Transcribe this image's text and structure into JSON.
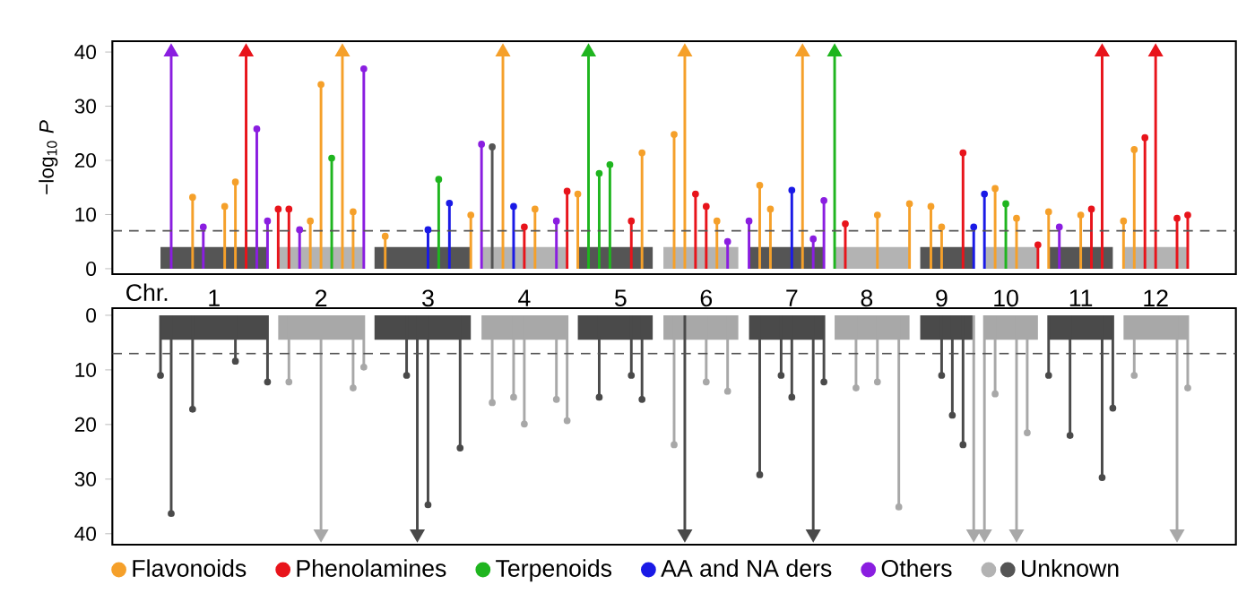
{
  "chart_data": [
    {
      "type": "lollipop",
      "xlabel": "Chr.",
      "ylabel": "−log$_{10}$ *P*",
      "ylim": [
        -1,
        42
      ],
      "yticks": [
        0,
        10,
        20,
        30,
        40
      ],
      "legend": "bottom",
      "grid": false,
      "categories": [
        null,
        null,
        null,
        null,
        null,
        null,
        null,
        null,
        null,
        "1",
        null,
        null,
        null,
        null,
        null,
        null,
        null,
        null,
        null,
        "2",
        null,
        null,
        null,
        null,
        null,
        null,
        null,
        null,
        null,
        "3",
        null,
        null,
        null,
        null,
        null,
        null,
        null,
        null,
        "4",
        null,
        null,
        null,
        null,
        null,
        null,
        null,
        null,
        "5",
        null,
        null,
        null,
        null,
        null,
        null,
        null,
        "6",
        null,
        null,
        null,
        null,
        null,
        null,
        null,
        "7",
        null,
        null,
        null,
        null,
        null,
        null,
        "8",
        null,
        null,
        null,
        null,
        null,
        null,
        "9",
        null,
        null,
        null,
        null,
        null,
        "10",
        null,
        null,
        null,
        null,
        null,
        null,
        "11",
        null,
        null,
        null,
        null,
        null,
        null,
        "12",
        null,
        null,
        null,
        null,
        null,
        null,
        null
      ],
      "ref_lines": [
        {
          "axis": "y",
          "value": 7,
          "color": "#555555",
          "line_style": "dashed"
        }
      ],
      "series": [
        {
          "type": "area",
          "color": "#555555",
          "values": [
            null,
            null,
            null,
            null,
            4,
            4,
            4,
            4,
            4,
            4,
            4,
            4,
            4,
            4,
            4,
            null,
            null,
            null,
            null,
            null,
            null,
            null,
            null,
            null,
            4,
            4,
            4,
            4,
            4,
            4,
            4,
            4,
            4,
            4,
            null,
            null,
            null,
            null,
            null,
            null,
            null,
            null,
            null,
            4,
            4,
            4,
            4,
            4,
            4,
            4,
            4,
            null,
            null,
            null,
            null,
            null,
            null,
            null,
            null,
            4,
            4,
            4,
            4,
            4,
            4,
            4,
            4,
            null,
            null,
            null,
            null,
            null,
            null,
            null,
            null,
            4,
            4,
            4,
            4,
            4,
            4,
            null,
            null,
            null,
            null,
            null,
            null,
            4,
            4,
            4,
            4,
            4,
            4,
            4,
            null,
            null,
            null,
            null,
            null,
            null,
            null,
            null,
            null,
            null,
            null
          ]
        },
        {
          "type": "area",
          "color": "#b3b3b3",
          "values": [
            null,
            null,
            null,
            null,
            null,
            null,
            null,
            null,
            null,
            null,
            null,
            null,
            null,
            null,
            null,
            4,
            4,
            4,
            4,
            4,
            4,
            4,
            4,
            4,
            null,
            null,
            null,
            null,
            null,
            null,
            null,
            null,
            null,
            null,
            4,
            4,
            4,
            4,
            4,
            4,
            4,
            4,
            4,
            null,
            null,
            null,
            null,
            null,
            null,
            null,
            null,
            4,
            4,
            4,
            4,
            4,
            4,
            4,
            4,
            null,
            null,
            null,
            null,
            null,
            null,
            null,
            null,
            4,
            4,
            4,
            4,
            4,
            4,
            4,
            4,
            null,
            null,
            null,
            null,
            null,
            null,
            4,
            4,
            4,
            4,
            4,
            4,
            null,
            null,
            null,
            null,
            null,
            null,
            null,
            4,
            4,
            4,
            4,
            4,
            4,
            4,
            null,
            null,
            null,
            null
          ]
        },
        {
          "name": "Flavonoids",
          "color": "#f5a02a",
          "marker": "circle",
          "values": [
            null,
            null,
            null,
            null,
            null,
            null,
            null,
            13.2,
            null,
            null,
            11.5,
            16,
            null,
            null,
            null,
            null,
            null,
            null,
            8.8,
            34,
            null,
            null,
            10.5,
            null,
            null,
            6,
            null,
            null,
            null,
            null,
            null,
            null,
            null,
            9.9,
            null,
            null,
            null,
            null,
            null,
            11,
            null,
            null,
            null,
            13.8,
            null,
            null,
            null,
            null,
            null,
            21.4,
            null,
            null,
            24.8,
            null,
            null,
            null,
            8.8,
            null,
            null,
            null,
            15.4,
            11,
            null,
            null,
            null,
            null,
            null,
            null,
            null,
            null,
            null,
            9.9,
            null,
            null,
            12,
            null,
            11.5,
            7.7,
            null,
            null,
            null,
            null,
            14.8,
            null,
            9.3,
            null,
            null,
            10.5,
            null,
            null,
            9.9,
            null,
            null,
            null,
            8.8,
            22,
            null,
            null,
            null,
            null,
            null,
            null,
            null,
            null,
            null
          ]
        },
        {
          "name": "Phenolamines",
          "color": "#e8141b",
          "marker": "circle",
          "values": [
            null,
            null,
            null,
            null,
            null,
            null,
            null,
            null,
            null,
            null,
            null,
            null,
            null,
            null,
            null,
            11,
            11,
            null,
            null,
            null,
            null,
            null,
            null,
            null,
            null,
            null,
            null,
            null,
            null,
            null,
            null,
            null,
            null,
            null,
            null,
            null,
            null,
            null,
            7.7,
            null,
            null,
            null,
            14.3,
            null,
            null,
            null,
            null,
            null,
            8.8,
            null,
            null,
            null,
            null,
            null,
            13.8,
            11.5,
            null,
            null,
            null,
            null,
            null,
            null,
            null,
            null,
            null,
            null,
            null,
            null,
            8.3,
            null,
            null,
            null,
            null,
            null,
            null,
            null,
            null,
            null,
            null,
            21.4,
            null,
            null,
            null,
            null,
            null,
            null,
            4.4,
            null,
            null,
            null,
            null,
            11,
            null,
            null,
            null,
            null,
            24.2,
            null,
            null,
            9.3,
            9.9,
            null,
            null,
            null,
            null
          ]
        },
        {
          "name": "Terpenoids",
          "color": "#1fb51f",
          "marker": "circle",
          "values": [
            null,
            null,
            null,
            null,
            null,
            null,
            null,
            null,
            null,
            null,
            null,
            null,
            null,
            null,
            null,
            null,
            null,
            null,
            null,
            null,
            20.4,
            null,
            null,
            null,
            null,
            null,
            null,
            null,
            null,
            null,
            16.5,
            null,
            null,
            null,
            null,
            null,
            null,
            null,
            null,
            null,
            null,
            null,
            null,
            null,
            null,
            17.6,
            19.2,
            null,
            null,
            null,
            null,
            null,
            null,
            null,
            null,
            null,
            null,
            null,
            null,
            null,
            null,
            null,
            null,
            null,
            null,
            null,
            null,
            null,
            null,
            null,
            null,
            null,
            null,
            null,
            null,
            null,
            null,
            null,
            null,
            null,
            null,
            null,
            null,
            12,
            null,
            null,
            null,
            null,
            null,
            null,
            null,
            null,
            null,
            null,
            null,
            null,
            null,
            null,
            null,
            null,
            null,
            null,
            null,
            null,
            null
          ]
        },
        {
          "name": "AA and NA ders",
          "color": "#1a1ae6",
          "marker": "circle",
          "values": [
            null,
            null,
            null,
            null,
            null,
            null,
            null,
            null,
            null,
            null,
            null,
            null,
            null,
            null,
            null,
            null,
            null,
            null,
            null,
            null,
            null,
            null,
            null,
            null,
            null,
            null,
            null,
            null,
            null,
            7.2,
            null,
            12.1,
            null,
            null,
            null,
            null,
            null,
            11.5,
            null,
            null,
            null,
            null,
            null,
            null,
            null,
            null,
            null,
            null,
            null,
            null,
            null,
            null,
            null,
            null,
            null,
            null,
            null,
            null,
            null,
            null,
            null,
            null,
            null,
            14.5,
            null,
            null,
            null,
            null,
            null,
            null,
            null,
            null,
            null,
            null,
            null,
            null,
            null,
            null,
            null,
            null,
            7.7,
            13.8,
            null,
            null,
            null,
            null,
            null,
            null,
            null,
            null,
            null,
            null,
            null,
            null,
            null,
            null,
            null,
            null,
            null,
            null,
            null,
            null,
            null,
            null,
            null
          ]
        },
        {
          "name": "Others",
          "color": "#8a1ee0",
          "marker": "circle",
          "values": [
            null,
            null,
            null,
            null,
            null,
            null,
            null,
            null,
            7.7,
            null,
            null,
            null,
            null,
            25.8,
            8.8,
            null,
            null,
            7.2,
            null,
            null,
            null,
            null,
            null,
            36.9,
            null,
            null,
            null,
            null,
            null,
            null,
            null,
            null,
            null,
            null,
            23,
            null,
            null,
            null,
            null,
            null,
            null,
            8.8,
            null,
            null,
            null,
            null,
            null,
            null,
            null,
            null,
            null,
            null,
            null,
            null,
            null,
            null,
            null,
            5,
            null,
            8.8,
            null,
            null,
            null,
            null,
            null,
            5.5,
            12.6,
            null,
            null,
            null,
            null,
            null,
            null,
            null,
            null,
            null,
            null,
            null,
            null,
            null,
            null,
            null,
            null,
            null,
            null,
            null,
            null,
            null,
            7.7,
            null,
            null,
            null,
            null,
            null,
            null,
            null,
            null,
            null,
            null,
            null,
            null,
            null,
            null,
            null,
            null
          ]
        },
        {
          "name": "Unknown",
          "color": "#555555",
          "marker": "circle",
          "values": [
            null,
            null,
            null,
            null,
            null,
            null,
            null,
            null,
            null,
            null,
            null,
            null,
            null,
            null,
            null,
            null,
            null,
            null,
            null,
            null,
            null,
            null,
            null,
            null,
            null,
            null,
            null,
            null,
            null,
            null,
            null,
            null,
            null,
            null,
            null,
            22.5,
            null,
            null,
            null,
            null,
            null,
            null,
            null,
            null,
            null,
            null,
            null,
            null,
            null,
            null,
            null,
            null,
            null,
            null,
            null,
            null,
            null,
            null,
            null,
            null,
            null,
            null,
            null,
            null,
            null,
            null,
            null,
            null,
            null,
            null,
            null,
            null,
            null,
            null,
            null,
            null,
            null,
            null,
            null,
            null,
            null,
            null,
            null,
            null,
            null,
            null,
            null,
            null,
            null,
            null,
            null,
            null,
            null,
            null,
            null,
            null,
            null,
            null,
            null,
            null,
            null,
            null,
            null,
            null,
            null
          ]
        },
        {
          "color": "#f5a02a",
          "marker": "triangle",
          "values": [
            null,
            null,
            null,
            null,
            null,
            null,
            null,
            null,
            null,
            null,
            null,
            null,
            null,
            null,
            null,
            null,
            null,
            null,
            null,
            null,
            null,
            40,
            null,
            null,
            null,
            null,
            null,
            null,
            null,
            null,
            null,
            null,
            null,
            null,
            null,
            null,
            40,
            null,
            null,
            null,
            null,
            null,
            null,
            null,
            null,
            null,
            null,
            null,
            null,
            null,
            null,
            null,
            null,
            40,
            null,
            null,
            null,
            null,
            null,
            null,
            null,
            null,
            null,
            null,
            40,
            null,
            null,
            null,
            null,
            null,
            null,
            null,
            null,
            null,
            null,
            null,
            null,
            null,
            null,
            null,
            null,
            null,
            null,
            null,
            null,
            null,
            null,
            null,
            null,
            null,
            null,
            null,
            null,
            null,
            null,
            null,
            null,
            null,
            null,
            null,
            null,
            null,
            null,
            null,
            null
          ]
        },
        {
          "color": "#e8141b",
          "marker": "triangle",
          "values": [
            null,
            null,
            null,
            null,
            null,
            null,
            null,
            null,
            null,
            null,
            null,
            null,
            40,
            null,
            null,
            null,
            null,
            null,
            null,
            null,
            null,
            null,
            null,
            null,
            null,
            null,
            null,
            null,
            null,
            null,
            null,
            null,
            null,
            null,
            null,
            null,
            null,
            null,
            null,
            null,
            null,
            null,
            null,
            null,
            null,
            null,
            null,
            null,
            null,
            null,
            null,
            null,
            null,
            null,
            null,
            null,
            null,
            null,
            null,
            null,
            null,
            null,
            null,
            null,
            null,
            null,
            null,
            null,
            null,
            null,
            null,
            null,
            null,
            null,
            null,
            null,
            null,
            null,
            null,
            null,
            null,
            null,
            null,
            null,
            null,
            null,
            null,
            null,
            null,
            null,
            null,
            null,
            40,
            null,
            null,
            null,
            null,
            40,
            null,
            null,
            null,
            null,
            null,
            null,
            null
          ]
        },
        {
          "color": "#1fb51f",
          "marker": "triangle",
          "values": [
            null,
            null,
            null,
            null,
            null,
            null,
            null,
            null,
            null,
            null,
            null,
            null,
            null,
            null,
            null,
            null,
            null,
            null,
            null,
            null,
            null,
            null,
            null,
            null,
            null,
            null,
            null,
            null,
            null,
            null,
            null,
            null,
            null,
            null,
            null,
            null,
            null,
            null,
            null,
            null,
            null,
            null,
            null,
            null,
            40,
            null,
            null,
            null,
            null,
            null,
            null,
            null,
            null,
            null,
            null,
            null,
            null,
            null,
            null,
            null,
            null,
            null,
            null,
            null,
            null,
            null,
            null,
            40,
            null,
            null,
            null,
            null,
            null,
            null,
            null,
            null,
            null,
            null,
            null,
            null,
            null,
            null,
            null,
            null,
            null,
            null,
            null,
            null,
            null,
            null,
            null,
            null,
            null,
            null,
            null,
            null,
            null,
            null,
            null,
            null,
            null,
            null,
            null,
            null,
            null
          ]
        },
        {
          "color": "#8a1ee0",
          "marker": "triangle",
          "values": [
            null,
            null,
            null,
            null,
            null,
            40,
            null,
            null,
            null,
            null,
            null,
            null,
            null,
            null,
            null,
            null,
            null,
            null,
            null,
            null,
            null,
            null,
            null,
            null,
            null,
            null,
            null,
            null,
            null,
            null,
            null,
            null,
            null,
            null,
            null,
            null,
            null,
            null,
            null,
            null,
            null,
            null,
            null,
            null,
            null,
            null,
            null,
            null,
            null,
            null,
            null,
            null,
            null,
            null,
            null,
            null,
            null,
            null,
            null,
            null,
            null,
            null,
            null,
            null,
            null,
            null,
            null,
            null,
            null,
            null,
            null,
            null,
            null,
            null,
            null,
            null,
            null,
            null,
            null,
            null,
            null,
            null,
            null,
            null,
            null,
            null,
            null,
            null,
            null,
            null,
            null,
            null,
            null,
            null,
            null,
            null,
            null,
            null,
            null,
            null,
            null,
            null,
            null,
            null,
            null
          ]
        }
      ]
    },
    {
      "type": "lollipop",
      "ylim": [
        42,
        -1.3
      ],
      "yticks": [
        0,
        10,
        20,
        30,
        40
      ],
      "tick_labels": "y",
      "grid": false,
      "categories": [
        null,
        null,
        null,
        null,
        null,
        null,
        null,
        null,
        null,
        "1",
        null,
        null,
        null,
        null,
        null,
        null,
        null,
        null,
        null,
        "2",
        null,
        null,
        null,
        null,
        null,
        null,
        null,
        null,
        null,
        "3",
        null,
        null,
        null,
        null,
        null,
        null,
        null,
        null,
        "4",
        null,
        null,
        null,
        null,
        null,
        null,
        null,
        null,
        "5",
        null,
        null,
        null,
        null,
        null,
        null,
        null,
        "6",
        null,
        null,
        null,
        null,
        null,
        null,
        null,
        "7",
        null,
        null,
        null,
        null,
        null,
        null,
        "8",
        null,
        null,
        null,
        null,
        null,
        null,
        "9",
        null,
        null,
        null,
        null,
        null,
        "10",
        null,
        null,
        null,
        null,
        null,
        null,
        "11",
        null,
        null,
        null,
        null,
        null,
        null,
        "12",
        null,
        null,
        null,
        null,
        null,
        null,
        null
      ],
      "ref_lines": [
        {
          "axis": "y",
          "value": 7,
          "color": "#555555",
          "line_style": "dashed"
        }
      ],
      "series": [
        {
          "type": "area",
          "color": "#4a4a4a",
          "values": [
            null,
            null,
            null,
            null,
            4.5,
            4.5,
            4.5,
            4.5,
            4.5,
            4.5,
            4.5,
            4.5,
            4.5,
            4.5,
            4.5,
            null,
            null,
            null,
            null,
            null,
            null,
            null,
            null,
            null,
            4.5,
            4.5,
            4.5,
            4.5,
            4.5,
            4.5,
            4.5,
            4.5,
            4.5,
            4.5,
            null,
            null,
            null,
            null,
            null,
            null,
            null,
            null,
            null,
            4.5,
            4.5,
            4.5,
            4.5,
            4.5,
            4.5,
            4.5,
            4.5,
            null,
            null,
            null,
            null,
            null,
            null,
            null,
            null,
            4.5,
            4.5,
            4.5,
            4.5,
            4.5,
            4.5,
            4.5,
            4.5,
            null,
            null,
            null,
            null,
            null,
            null,
            null,
            null,
            4.5,
            4.5,
            4.5,
            4.5,
            4.5,
            4.5,
            null,
            null,
            null,
            null,
            null,
            null,
            4.5,
            4.5,
            4.5,
            4.5,
            4.5,
            4.5,
            4.5,
            null,
            null,
            null,
            null,
            null,
            null,
            null,
            null,
            null,
            null,
            null
          ]
        },
        {
          "type": "area",
          "color": "#a8a8a8",
          "values": [
            null,
            null,
            null,
            null,
            null,
            null,
            null,
            null,
            null,
            null,
            null,
            null,
            null,
            null,
            null,
            4.5,
            4.5,
            4.5,
            4.5,
            4.5,
            4.5,
            4.5,
            4.5,
            4.5,
            null,
            null,
            null,
            null,
            null,
            null,
            null,
            null,
            null,
            null,
            4.5,
            4.5,
            4.5,
            4.5,
            4.5,
            4.5,
            4.5,
            4.5,
            4.5,
            null,
            null,
            null,
            null,
            null,
            null,
            null,
            null,
            4.5,
            4.5,
            4.5,
            4.5,
            4.5,
            4.5,
            4.5,
            4.5,
            null,
            null,
            null,
            null,
            null,
            null,
            null,
            null,
            4.5,
            4.5,
            4.5,
            4.5,
            4.5,
            4.5,
            4.5,
            4.5,
            null,
            null,
            null,
            null,
            null,
            null,
            4.5,
            4.5,
            4.5,
            4.5,
            4.5,
            4.5,
            null,
            null,
            null,
            null,
            null,
            null,
            null,
            4.5,
            4.5,
            4.5,
            4.5,
            4.5,
            4.5,
            4.5,
            null,
            null,
            null,
            null
          ]
        },
        {
          "color": "#a8a8a8",
          "marker": "circle",
          "values": [
            null,
            null,
            null,
            null,
            null,
            null,
            null,
            null,
            null,
            null,
            null,
            null,
            null,
            null,
            null,
            null,
            12.2,
            null,
            null,
            null,
            null,
            null,
            13.3,
            9.5,
            null,
            null,
            null,
            null,
            null,
            null,
            null,
            null,
            null,
            null,
            null,
            16,
            null,
            15,
            19.9,
            null,
            null,
            15.4,
            19.3,
            null,
            null,
            null,
            null,
            null,
            null,
            null,
            null,
            null,
            23.7,
            null,
            null,
            12.2,
            null,
            13.9,
            null,
            null,
            null,
            null,
            null,
            null,
            null,
            null,
            null,
            null,
            null,
            13.3,
            null,
            12.2,
            null,
            35.1,
            null,
            null,
            null,
            null,
            null,
            null,
            null,
            null,
            14.4,
            null,
            null,
            21.5,
            null,
            null,
            null,
            null,
            null,
            null,
            null,
            null,
            null,
            11,
            null,
            null,
            null,
            null,
            13.3,
            null,
            null,
            null,
            null
          ]
        },
        {
          "color": "#4a4a4a",
          "marker": "circle",
          "values": [
            null,
            null,
            null,
            null,
            11,
            36.3,
            null,
            17.2,
            null,
            null,
            null,
            8.4,
            null,
            null,
            12.2,
            null,
            null,
            null,
            null,
            null,
            null,
            null,
            null,
            null,
            null,
            null,
            null,
            11,
            null,
            34.7,
            null,
            null,
            24.3,
            null,
            null,
            null,
            null,
            null,
            null,
            null,
            null,
            null,
            null,
            null,
            null,
            15,
            null,
            null,
            11,
            15.4,
            null,
            null,
            null,
            null,
            null,
            null,
            null,
            null,
            null,
            null,
            29.2,
            null,
            11,
            15,
            null,
            null,
            12.2,
            null,
            null,
            null,
            null,
            null,
            null,
            null,
            null,
            null,
            null,
            11,
            18.3,
            23.7,
            null,
            null,
            null,
            null,
            null,
            null,
            null,
            11,
            null,
            22,
            null,
            null,
            29.7,
            17,
            null,
            null,
            null,
            null,
            null,
            null,
            null,
            null,
            null,
            null,
            null
          ]
        },
        {
          "color": "#a8a8a8",
          "marker": "triangle",
          "values": [
            null,
            null,
            null,
            null,
            null,
            null,
            null,
            null,
            null,
            null,
            null,
            null,
            null,
            null,
            null,
            null,
            null,
            null,
            null,
            40,
            null,
            null,
            null,
            null,
            null,
            null,
            null,
            null,
            null,
            null,
            null,
            null,
            null,
            null,
            null,
            null,
            null,
            null,
            null,
            null,
            null,
            null,
            null,
            null,
            null,
            null,
            null,
            null,
            null,
            null,
            null,
            null,
            null,
            null,
            null,
            null,
            null,
            null,
            null,
            null,
            null,
            null,
            null,
            null,
            null,
            null,
            null,
            null,
            null,
            null,
            null,
            null,
            null,
            null,
            null,
            null,
            null,
            null,
            null,
            null,
            40,
            40,
            null,
            null,
            40,
            null,
            null,
            null,
            null,
            null,
            null,
            null,
            null,
            null,
            null,
            null,
            null,
            null,
            null,
            40,
            null,
            null,
            null,
            null,
            null
          ]
        },
        {
          "color": "#4a4a4a",
          "marker": "triangle",
          "values": [
            null,
            null,
            null,
            null,
            null,
            null,
            null,
            null,
            null,
            null,
            null,
            null,
            null,
            null,
            null,
            null,
            null,
            null,
            null,
            null,
            null,
            null,
            null,
            null,
            null,
            null,
            null,
            null,
            40,
            null,
            null,
            null,
            null,
            null,
            null,
            null,
            null,
            null,
            null,
            null,
            null,
            null,
            null,
            null,
            null,
            null,
            null,
            null,
            null,
            null,
            null,
            null,
            null,
            40,
            null,
            null,
            null,
            null,
            null,
            null,
            null,
            null,
            null,
            null,
            null,
            40,
            null,
            null,
            null,
            null,
            null,
            null,
            null,
            null,
            null,
            null,
            null,
            null,
            null,
            null,
            null,
            null,
            null,
            null,
            null,
            null,
            null,
            null,
            null,
            null,
            null,
            null,
            null,
            null,
            null,
            null,
            null,
            null,
            null,
            null,
            null,
            null,
            null,
            null,
            null
          ]
        }
      ]
    }
  ]
}
